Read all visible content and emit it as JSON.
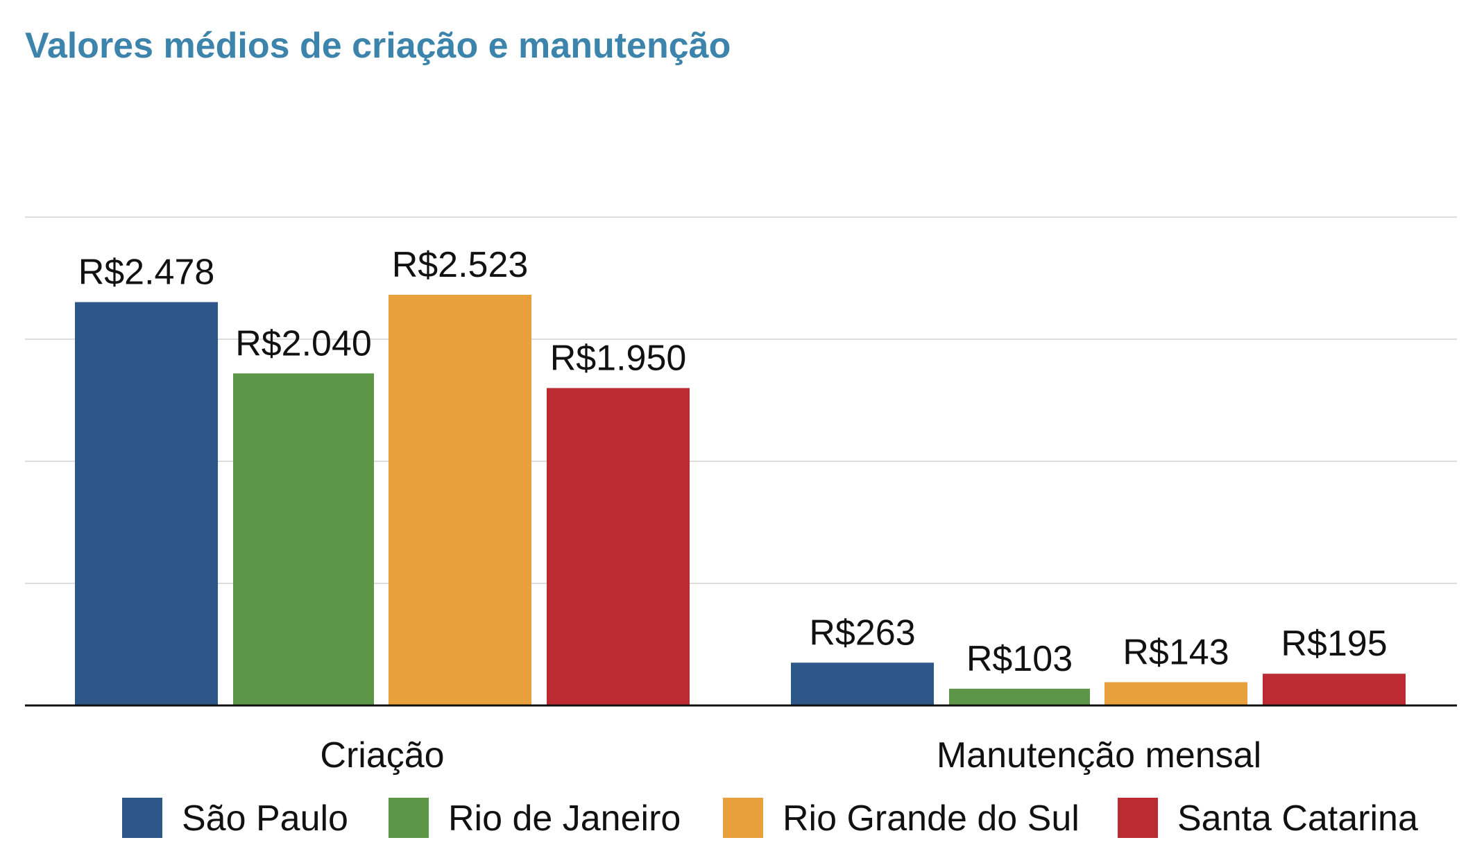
{
  "chart_data": {
    "type": "bar",
    "title": "Valores médios de criação e manutenção",
    "categories": [
      "Criação",
      "Manutenção mensal"
    ],
    "series": [
      {
        "name": "São Paulo",
        "color": "#2e5789",
        "values": [
          2478,
          263
        ],
        "labels": [
          "R$2.478",
          "R$263"
        ]
      },
      {
        "name": "Rio de Janeiro",
        "color": "#5e9648",
        "values": [
          2040,
          103
        ],
        "labels": [
          "R$2.040",
          "R$103"
        ]
      },
      {
        "name": "Rio Grande do  Sul",
        "color": "#e7a03c",
        "values": [
          2523,
          143
        ],
        "labels": [
          "R$2.523",
          "R$143"
        ]
      },
      {
        "name": "Santa Catarina",
        "color": "#bc2b31",
        "values": [
          1950,
          195
        ],
        "labels": [
          "R$1.950",
          "R$195"
        ]
      }
    ],
    "ylim": [
      0,
      3000
    ],
    "gridlines": [
      750,
      1500,
      2250,
      3000
    ],
    "y_tick_labels": "none",
    "grid": true,
    "legend": "bottom"
  }
}
